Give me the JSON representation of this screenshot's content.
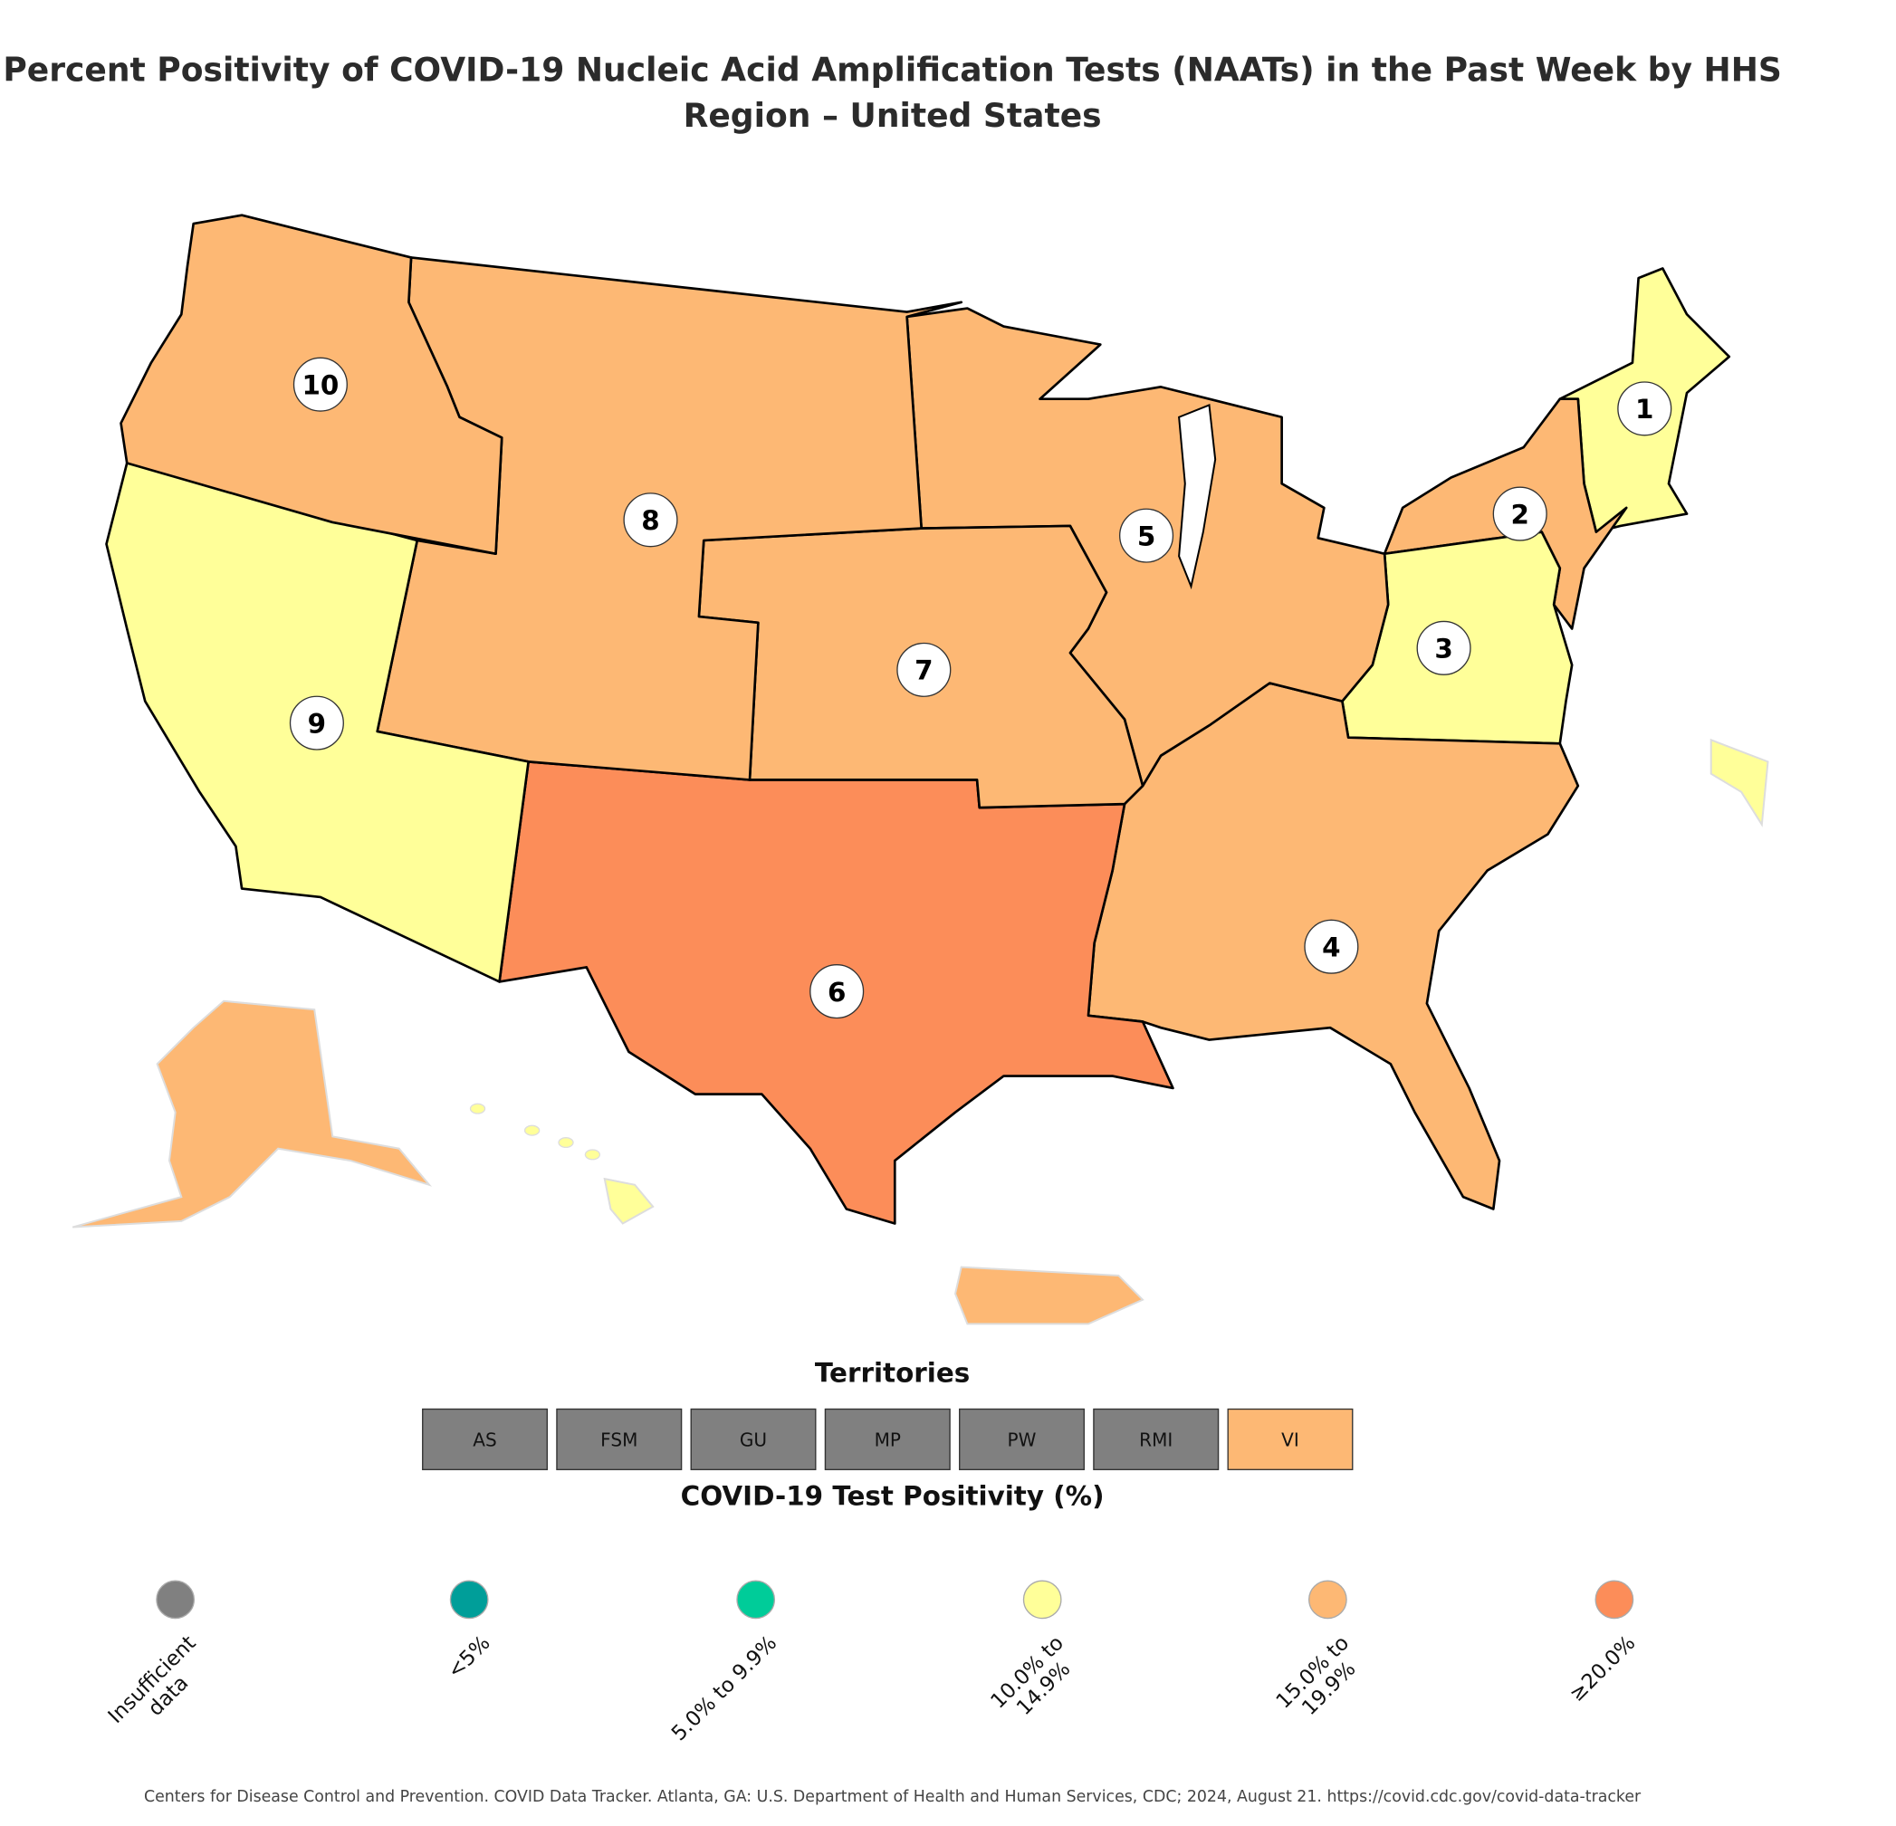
{
  "title": "Percent Positivity of COVID-19 Nucleic Acid Amplification Tests (NAATs) in the Past Week by HHS Region – United States",
  "chart_data": {
    "type": "choropleth",
    "title": "Percent Positivity of COVID-19 Nucleic Acid Amplification Tests (NAATs) in the Past Week by HHS Region – United States",
    "regions": [
      {
        "label": "1",
        "category": "10.0% to 14.9%"
      },
      {
        "label": "2",
        "category": "15.0% to 19.9%"
      },
      {
        "label": "3",
        "category": "10.0% to 14.9%"
      },
      {
        "label": "4",
        "category": "15.0% to 19.9%"
      },
      {
        "label": "5",
        "category": "15.0% to 19.9%"
      },
      {
        "label": "6",
        "category": "≥20.0%"
      },
      {
        "label": "7",
        "category": "15.0% to 19.9%"
      },
      {
        "label": "8",
        "category": "15.0% to 19.9%"
      },
      {
        "label": "9",
        "category": "10.0% to 14.9%"
      },
      {
        "label": "10",
        "category": "15.0% to 19.9%"
      }
    ],
    "outlying": [
      {
        "name": "Alaska",
        "category": "15.0% to 19.9%"
      },
      {
        "name": "Hawaii",
        "category": "10.0% to 14.9%"
      },
      {
        "name": "Puerto Rico",
        "category": "15.0% to 19.9%"
      },
      {
        "name": "Inset",
        "category": "10.0% to 14.9%"
      }
    ]
  },
  "territories": {
    "title": "Territories",
    "items": [
      {
        "label": "AS",
        "category": "Insufficient data"
      },
      {
        "label": "FSM",
        "category": "Insufficient data"
      },
      {
        "label": "GU",
        "category": "Insufficient data"
      },
      {
        "label": "MP",
        "category": "Insufficient data"
      },
      {
        "label": "PW",
        "category": "Insufficient data"
      },
      {
        "label": "RMI",
        "category": "Insufficient data"
      },
      {
        "label": "VI",
        "category": "15.0% to 19.9%"
      }
    ]
  },
  "legend": {
    "title": "COVID-19 Test Positivity (%)",
    "items": [
      {
        "label": "Insufficient\ndata",
        "key": "Insufficient data",
        "color": "#808080"
      },
      {
        "label": "<5%",
        "key": "<5%",
        "color": "#009e99"
      },
      {
        "label": "5.0% to 9.9%",
        "key": "5.0% to 9.9%",
        "color": "#00cc99"
      },
      {
        "label": "10.0% to\n14.9%",
        "key": "10.0% to 14.9%",
        "color": "#ffff99"
      },
      {
        "label": "15.0% to\n19.9%",
        "key": "15.0% to 19.9%",
        "color": "#fdb874"
      },
      {
        "label": "≥20.0%",
        "key": "≥20.0%",
        "color": "#fc8d59"
      }
    ]
  },
  "footer": "Centers for Disease Control and Prevention. COVID Data Tracker. Atlanta, GA: U.S. Department of Health and Human Services, CDC; 2024, August 21. https://covid.cdc.gov/covid-data-tracker"
}
